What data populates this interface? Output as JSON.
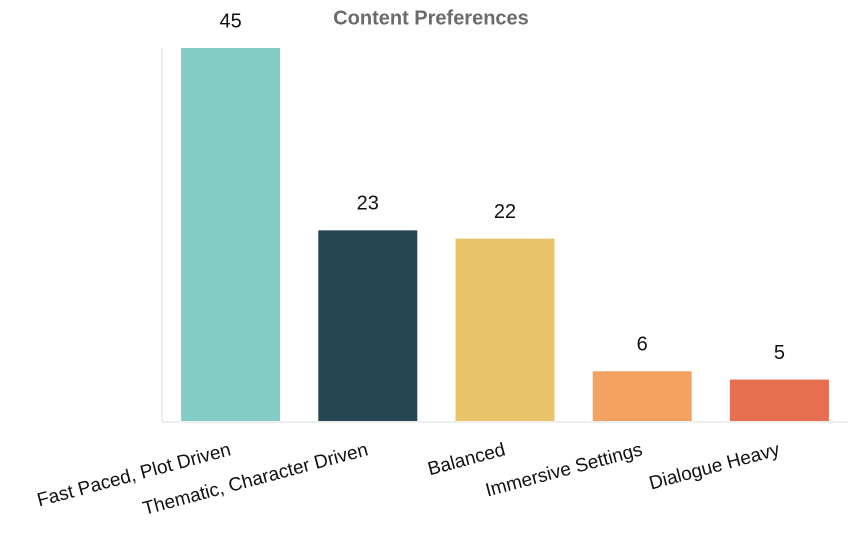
{
  "chart_data": {
    "type": "bar",
    "title": "Content Preferences",
    "categories": [
      "Fast Paced, Plot Driven",
      "Thematic, Character Driven",
      "Balanced",
      "Immersive Settings",
      "Dialogue Heavy"
    ],
    "values": [
      45,
      23,
      22,
      6,
      5
    ],
    "colors": [
      "#82ccc5",
      "#264653",
      "#e9c46a",
      "#f4a261",
      "#e76f51"
    ]
  }
}
